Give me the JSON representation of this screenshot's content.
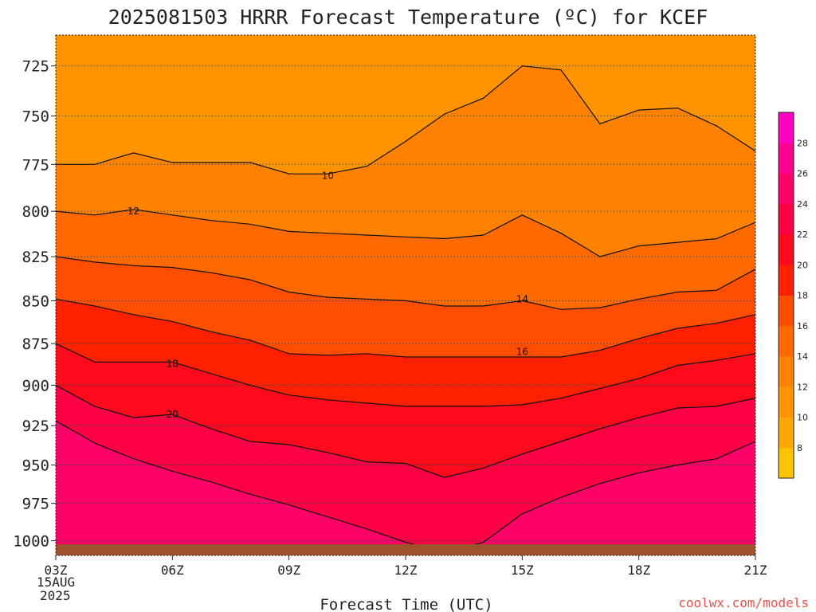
{
  "chart_data": {
    "type": "heatmap",
    "title": "2025081503 HRRR Forecast Temperature (ºC) for KCEF",
    "xlabel": "Forecast Time (UTC)",
    "ylabel": "",
    "x_ticks": [
      "03Z",
      "06Z",
      "09Z",
      "12Z",
      "15Z",
      "18Z",
      "21Z"
    ],
    "x_tick_hours": [
      3,
      6,
      9,
      12,
      15,
      18,
      21
    ],
    "x_date_lines": [
      "15AUG",
      "2025"
    ],
    "xlim": [
      3,
      21
    ],
    "y_ticks": [
      725,
      750,
      775,
      800,
      825,
      850,
      875,
      900,
      925,
      950,
      975,
      1000
    ],
    "ylim": [
      1010,
      710
    ],
    "y_scale": "log-pressure",
    "grid": true,
    "grid_style": "dotted horizontal",
    "contour_interval_degC": 2,
    "contours": [
      {
        "level": 10,
        "label": "10",
        "label_at": [
          10,
          781
        ],
        "points": [
          [
            3,
            775
          ],
          [
            4,
            775
          ],
          [
            5,
            769
          ],
          [
            6,
            774
          ],
          [
            7,
            774
          ],
          [
            8,
            774
          ],
          [
            9,
            780
          ],
          [
            10,
            780
          ],
          [
            11,
            776
          ],
          [
            12,
            763
          ],
          [
            13,
            749
          ],
          [
            14,
            741
          ],
          [
            15,
            725
          ],
          [
            16,
            727
          ],
          [
            17,
            754
          ],
          [
            18,
            747
          ],
          [
            19,
            746
          ],
          [
            20,
            755
          ],
          [
            21,
            768
          ]
        ]
      },
      {
        "level": 12,
        "label": "12",
        "label_at": [
          5,
          800
        ],
        "points": [
          [
            3,
            800
          ],
          [
            4,
            802
          ],
          [
            5,
            799
          ],
          [
            6,
            802
          ],
          [
            7,
            805
          ],
          [
            8,
            807
          ],
          [
            9,
            811
          ],
          [
            10,
            812
          ],
          [
            11,
            813
          ],
          [
            12,
            814
          ],
          [
            13,
            815
          ],
          [
            14,
            813
          ],
          [
            15,
            802
          ],
          [
            16,
            812
          ],
          [
            17,
            825
          ],
          [
            18,
            819
          ],
          [
            19,
            817
          ],
          [
            20,
            815
          ],
          [
            21,
            806
          ]
        ]
      },
      {
        "level": 14,
        "label": "14",
        "label_at": [
          15,
          849
        ],
        "points": [
          [
            3,
            825
          ],
          [
            4,
            828
          ],
          [
            5,
            830
          ],
          [
            6,
            831
          ],
          [
            7,
            834
          ],
          [
            8,
            838
          ],
          [
            9,
            845
          ],
          [
            10,
            848
          ],
          [
            11,
            849
          ],
          [
            12,
            850
          ],
          [
            13,
            853
          ],
          [
            14,
            853
          ],
          [
            15,
            850
          ],
          [
            16,
            855
          ],
          [
            17,
            854
          ],
          [
            18,
            849
          ],
          [
            19,
            845
          ],
          [
            20,
            844
          ],
          [
            21,
            832
          ]
        ]
      },
      {
        "level": 16,
        "label": "16",
        "label_at": [
          15,
          880
        ],
        "points": [
          [
            3,
            849
          ],
          [
            4,
            853
          ],
          [
            5,
            858
          ],
          [
            6,
            862
          ],
          [
            7,
            868
          ],
          [
            8,
            873
          ],
          [
            9,
            881
          ],
          [
            10,
            882
          ],
          [
            11,
            881
          ],
          [
            12,
            883
          ],
          [
            13,
            883
          ],
          [
            14,
            883
          ],
          [
            15,
            883
          ],
          [
            16,
            883
          ],
          [
            17,
            879
          ],
          [
            18,
            872
          ],
          [
            19,
            866
          ],
          [
            20,
            863
          ],
          [
            21,
            858
          ]
        ]
      },
      {
        "level": 18,
        "label": "18",
        "label_at": [
          6,
          887
        ],
        "points": [
          [
            3,
            875
          ],
          [
            4,
            886
          ],
          [
            5,
            886
          ],
          [
            6,
            886
          ],
          [
            7,
            893
          ],
          [
            8,
            900
          ],
          [
            9,
            906
          ],
          [
            10,
            909
          ],
          [
            11,
            911
          ],
          [
            12,
            913
          ],
          [
            13,
            913
          ],
          [
            14,
            913
          ],
          [
            15,
            912
          ],
          [
            16,
            908
          ],
          [
            17,
            902
          ],
          [
            18,
            896
          ],
          [
            19,
            888
          ],
          [
            20,
            885
          ],
          [
            21,
            881
          ]
        ]
      },
      {
        "level": 20,
        "label": "20",
        "label_at": [
          6,
          918
        ],
        "points": [
          [
            3,
            900
          ],
          [
            4,
            913
          ],
          [
            5,
            920
          ],
          [
            6,
            918
          ],
          [
            7,
            927
          ],
          [
            8,
            935
          ],
          [
            9,
            937
          ],
          [
            10,
            942
          ],
          [
            11,
            948
          ],
          [
            12,
            949
          ],
          [
            13,
            958
          ],
          [
            14,
            952
          ],
          [
            15,
            943
          ],
          [
            16,
            935
          ],
          [
            17,
            927
          ],
          [
            18,
            920
          ],
          [
            19,
            914
          ],
          [
            20,
            913
          ],
          [
            21,
            908
          ]
        ]
      },
      {
        "level": 22,
        "label": "",
        "label_at": null,
        "points": [
          [
            3,
            922
          ],
          [
            4,
            936
          ],
          [
            5,
            946
          ],
          [
            6,
            954
          ],
          [
            7,
            961
          ],
          [
            8,
            969
          ],
          [
            9,
            976
          ],
          [
            10,
            984
          ],
          [
            11,
            992
          ],
          [
            12,
            1001
          ],
          [
            13,
            1008
          ],
          [
            14,
            1001
          ],
          [
            15,
            982
          ],
          [
            16,
            971
          ],
          [
            17,
            962
          ],
          [
            18,
            955
          ],
          [
            19,
            950
          ],
          [
            20,
            946
          ],
          [
            21,
            935
          ]
        ]
      }
    ],
    "surface_fill": "#a0522d",
    "colorbar": {
      "ticks": [
        8,
        10,
        12,
        14,
        16,
        18,
        20,
        22,
        24,
        26,
        28
      ],
      "colors": [
        "#ffc400",
        "#ffa700",
        "#ff9400",
        "#ff8100",
        "#ff6a00",
        "#ff4e00",
        "#ff2000",
        "#ff0a1c",
        "#ff0046",
        "#ff0068",
        "#ff0090",
        "#ff00c0"
      ]
    }
  },
  "credit": "coolwx.com/models"
}
